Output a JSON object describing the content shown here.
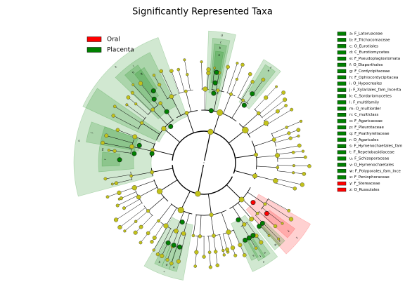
{
  "chart_data": {
    "type": "cladogram",
    "title": "Significantly Represented Taxa",
    "groups": [
      {
        "name": "Oral",
        "color": "#ff0000"
      },
      {
        "name": "Placenta",
        "color": "#008000"
      }
    ],
    "clades": [
      {
        "letter": "a",
        "label": "a: F_Latoruaceae",
        "group": 1
      },
      {
        "letter": "b",
        "label": "b: F_Trichocomaceae",
        "group": 1
      },
      {
        "letter": "c",
        "label": "c: O_Eurotiales",
        "group": 1
      },
      {
        "letter": "d",
        "label": "d: C_Eurotiomycetes",
        "group": 1
      },
      {
        "letter": "e",
        "label": "e: F_Pseudoplagiostomata",
        "group": 1
      },
      {
        "letter": "f",
        "label": "f: O_Diaporthales",
        "group": 1
      },
      {
        "letter": "g",
        "label": "g: F_Cordycipitaceae",
        "group": 1
      },
      {
        "letter": "h",
        "label": "h: F_Ophiocordycipitacea",
        "group": 1
      },
      {
        "letter": "i",
        "label": "i: O_Hypocreales",
        "group": 1
      },
      {
        "letter": "j",
        "label": "j: F_Xylariales_fam_Incerta",
        "group": 1
      },
      {
        "letter": "k",
        "label": "k: C_Sordariomycetes",
        "group": 1
      },
      {
        "letter": "l",
        "label": "l: F_multifamily",
        "group": 1
      },
      {
        "letter": "m",
        "label": "m: O_multiorder",
        "group": 1
      },
      {
        "letter": "n",
        "label": "n: C_multiclass",
        "group": 1
      },
      {
        "letter": "o",
        "label": "o: F_Agaricaceae",
        "group": 1
      },
      {
        "letter": "p",
        "label": "p: F_Pleurotaceae",
        "group": 1
      },
      {
        "letter": "q",
        "label": "q: F_Psathyrellaceae",
        "group": 1
      },
      {
        "letter": "r",
        "label": "r: O_Agaricales",
        "group": 1
      },
      {
        "letter": "s",
        "label": "s: F_Hymenochaetales_fam",
        "group": 1
      },
      {
        "letter": "t",
        "label": "t: F_Repetobasidiaceae",
        "group": 1
      },
      {
        "letter": "u",
        "label": "u: F_Schizoporaceae",
        "group": 1
      },
      {
        "letter": "v",
        "label": "v: O_Hymenochaetales",
        "group": 1
      },
      {
        "letter": "w",
        "label": "w: F_Polyporales_fam_Ince",
        "group": 1
      },
      {
        "letter": "x",
        "label": "x: F_Peniophoraceae",
        "group": 1
      },
      {
        "letter": "y",
        "label": "y: F_Stereaceae",
        "group": 0
      },
      {
        "letter": "z",
        "label": "z: O_Russulales",
        "group": 0
      }
    ]
  }
}
